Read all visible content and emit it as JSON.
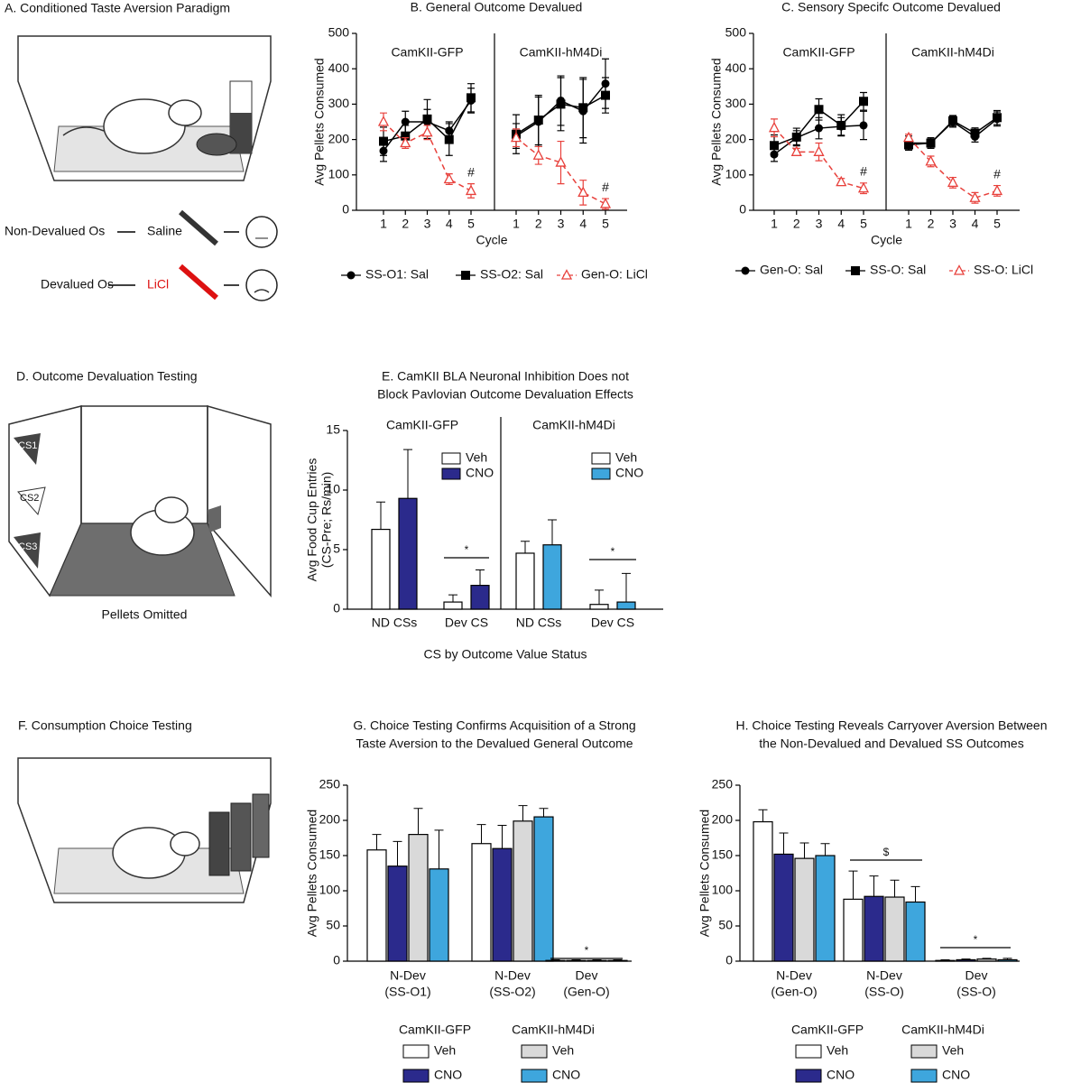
{
  "illustrations": {
    "a_title": "A. Conditioned Taste Aversion Paradigm",
    "nondevalued": "Non-Devalued Os",
    "saline": "Saline",
    "devalued": "Devalued Os",
    "licl": "LiCl",
    "d_title": "D. Outcome Devaluation Testing",
    "cs": [
      "CS1",
      "CS2",
      "CS3"
    ],
    "pellets": "Pellets Omitted",
    "f_title": "F. Consumption Choice Testing"
  },
  "chart_data": [
    {
      "type": "line",
      "title": "B. General Outcome Devalued",
      "groups": [
        "CamKII-GFP",
        "CamKII-hM4Di"
      ],
      "x": [
        1,
        2,
        3,
        4,
        5
      ],
      "xlabel": "Cycle",
      "ylabel": "Avg Pellets Consumed",
      "ylim": [
        0,
        500
      ],
      "yticks": [
        0,
        100,
        200,
        300,
        400,
        500
      ],
      "series": [
        {
          "name": "SS-O1: Sal",
          "color": "#000000",
          "marker": "circle",
          "dashed": false,
          "values": [
            [
              168,
              250,
              250,
              225,
              310
            ],
            [
              210,
              250,
              310,
              280,
              358
            ]
          ],
          "errors": [
            [
              30,
              30,
              35,
              25,
              35
            ],
            [
              35,
              70,
              70,
              90,
              70
            ]
          ]
        },
        {
          "name": "SS-O2: Sal",
          "color": "#000000",
          "marker": "square",
          "dashed": false,
          "values": [
            [
              195,
              210,
              258,
              200,
              318
            ],
            [
              215,
              255,
              300,
              290,
              325
            ]
          ],
          "errors": [
            [
              40,
              30,
              55,
              45,
              40
            ],
            [
              55,
              70,
              75,
              85,
              50
            ]
          ]
        },
        {
          "name": "Gen-O: LiCl",
          "color": "#e8413c",
          "marker": "triangle",
          "dashed": true,
          "values": [
            [
              250,
              190,
              220,
              88,
              55
            ],
            [
              205,
              155,
              135,
              50,
              18
            ]
          ],
          "errors": [
            [
              25,
              15,
              20,
              15,
              20
            ],
            [
              25,
              25,
              60,
              35,
              15
            ]
          ]
        }
      ],
      "annotations": [
        "#",
        "#"
      ]
    },
    {
      "type": "line",
      "title": "C. Sensory Specifc Outcome Devalued",
      "groups": [
        "CamKII-GFP",
        "CamKII-hM4Di"
      ],
      "x": [
        1,
        2,
        3,
        4,
        5
      ],
      "xlabel": "Cycle",
      "ylabel": "Avg Pellets Consumed",
      "ylim": [
        0,
        500
      ],
      "yticks": [
        0,
        100,
        200,
        300,
        400,
        500
      ],
      "series": [
        {
          "name": "Gen-O: Sal",
          "color": "#000000",
          "marker": "circle",
          "dashed": false,
          "values": [
            [
              158,
              205,
              232,
              237,
              240
            ],
            [
              190,
              190,
              250,
              208,
              258
            ]
          ],
          "errors": [
            [
              20,
              20,
              30,
              25,
              40
            ],
            [
              20,
              15,
              15,
              15,
              20
            ]
          ]
        },
        {
          "name": "SS-O: Sal",
          "color": "#000000",
          "marker": "square",
          "dashed": false,
          "values": [
            [
              183,
              207,
              285,
              240,
              308
            ],
            [
              185,
              190,
              253,
              218,
              262
            ]
          ],
          "errors": [
            [
              30,
              25,
              30,
              30,
              25
            ],
            [
              15,
              15,
              15,
              15,
              20
            ]
          ]
        },
        {
          "name": "SS-O: LiCl",
          "color": "#e8413c",
          "marker": "triangle",
          "dashed": true,
          "values": [
            [
              233,
              165,
              165,
              80,
              62
            ],
            [
              205,
              138,
              78,
              35,
              55
            ]
          ],
          "errors": [
            [
              25,
              10,
              25,
              10,
              15
            ],
            [
              10,
              15,
              15,
              15,
              15
            ]
          ]
        }
      ],
      "annotations": [
        "#",
        "#"
      ]
    },
    {
      "type": "grouped-bar",
      "title": [
        "E. CamKII BLA Neuronal Inhibition Does not",
        "Block Pavlovian Outcome Devaluation Effects"
      ],
      "groups": [
        "CamKII-GFP",
        "CamKII-hM4Di"
      ],
      "categories": [
        "ND CSs",
        "Dev CS"
      ],
      "xlabel": "CS by Outcome Value Status",
      "ylabel": [
        "Avg Food Cup Entries",
        "(CS-Pre; Rs/min)"
      ],
      "ylim": [
        0,
        15
      ],
      "yticks": [
        0,
        5,
        10,
        15
      ],
      "series": [
        {
          "name": "Veh",
          "colors": [
            "#ffffff",
            "#ffffff"
          ],
          "values": [
            [
              6.7,
              0.6
            ],
            [
              4.7,
              0.4
            ]
          ],
          "errors": [
            [
              2.3,
              0.6
            ],
            [
              1.0,
              1.2
            ]
          ]
        },
        {
          "name": "CNO",
          "colors": [
            "#2b2a8c",
            "#3ea6dd"
          ],
          "values": [
            [
              9.3,
              2.0
            ],
            [
              5.4,
              0.6
            ]
          ],
          "errors": [
            [
              4.1,
              1.3
            ],
            [
              2.1,
              2.4
            ]
          ]
        }
      ],
      "annotations": [
        "*",
        "*"
      ]
    },
    {
      "type": "bar",
      "title": [
        "G. Choice Testing Confirms Acquisition of a Strong",
        "Taste Aversion to the Devalued General Outcome"
      ],
      "categories": [
        [
          "N-Dev",
          "(SS-O1)"
        ],
        [
          "N-Dev",
          "(SS-O2)"
        ],
        [
          "Dev",
          "(Gen-O)"
        ]
      ],
      "ylabel": "Avg Pellets Consumed",
      "ylim": [
        0,
        250
      ],
      "yticks": [
        0,
        50,
        100,
        150,
        200,
        250
      ],
      "legend_groups": [
        "CamKII-GFP",
        "CamKII-hM4Di"
      ],
      "series": [
        {
          "name": "Veh",
          "color": "#ffffff",
          "values": [
            158,
            167,
            1
          ],
          "errors": [
            22,
            27,
            1
          ]
        },
        {
          "name": "CNO",
          "color": "#2b2a8c",
          "values": [
            135,
            160,
            1
          ],
          "errors": [
            35,
            33,
            1
          ]
        },
        {
          "name": "Veh",
          "color": "#d9d9d9",
          "values": [
            180,
            199,
            1
          ],
          "errors": [
            37,
            22,
            1
          ]
        },
        {
          "name": "CNO",
          "color": "#3ea6dd",
          "values": [
            131,
            205,
            1
          ],
          "errors": [
            55,
            12,
            1
          ]
        }
      ],
      "annotations": [
        "*"
      ]
    },
    {
      "type": "bar",
      "title": [
        "H. Choice Testing Reveals Carryover Aversion Between",
        "the Non-Devalued and Devalued SS Outcomes"
      ],
      "categories": [
        [
          "N-Dev",
          "(Gen-O)"
        ],
        [
          "N-Dev",
          "(SS-O)"
        ],
        [
          "Dev",
          "(SS-O)"
        ]
      ],
      "ylabel": "Avg Pellets Consumed",
      "ylim": [
        0,
        250
      ],
      "yticks": [
        0,
        50,
        100,
        150,
        200,
        250
      ],
      "legend_groups": [
        "CamKII-GFP",
        "CamKII-hM4Di"
      ],
      "series": [
        {
          "name": "Veh",
          "color": "#ffffff",
          "values": [
            198,
            88,
            1
          ],
          "errors": [
            17,
            40,
            1
          ]
        },
        {
          "name": "CNO",
          "color": "#2b2a8c",
          "values": [
            152,
            92,
            2
          ],
          "errors": [
            30,
            29,
            1
          ]
        },
        {
          "name": "Veh",
          "color": "#d9d9d9",
          "values": [
            146,
            91,
            3
          ],
          "errors": [
            22,
            24,
            1
          ]
        },
        {
          "name": "CNO",
          "color": "#3ea6dd",
          "values": [
            150,
            84,
            2
          ],
          "errors": [
            17,
            22,
            2
          ]
        }
      ],
      "annotations": [
        "$",
        "*"
      ]
    }
  ]
}
